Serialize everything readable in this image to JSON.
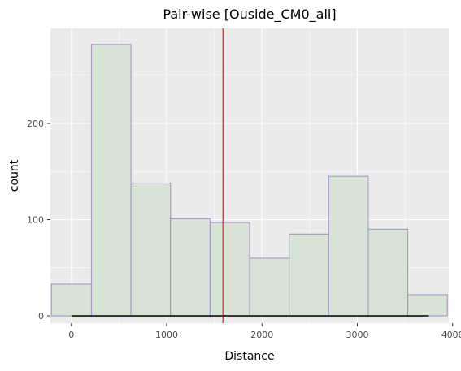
{
  "chart_data": {
    "type": "bar",
    "subtype": "histogram",
    "title": "Pair-wise [Ouside_CM0_all]",
    "xlabel": "Distance",
    "ylabel": "count",
    "xlim": [
      -220,
      3960
    ],
    "ylim": [
      0,
      300
    ],
    "xticks": [
      0,
      1000,
      2000,
      3000,
      4000
    ],
    "xtick_labels": [
      "0",
      "1000",
      "2000",
      "3000",
      "4000"
    ],
    "yticks": [
      0,
      100,
      200
    ],
    "ytick_labels": [
      "0",
      "100",
      "200"
    ],
    "grid": true,
    "bins": [
      {
        "x0": -210,
        "x1": 210,
        "count": 33
      },
      {
        "x0": 210,
        "x1": 625,
        "count": 282
      },
      {
        "x0": 625,
        "x1": 1040,
        "count": 138
      },
      {
        "x0": 1040,
        "x1": 1455,
        "count": 101
      },
      {
        "x0": 1455,
        "x1": 1870,
        "count": 97
      },
      {
        "x0": 1870,
        "x1": 2285,
        "count": 60
      },
      {
        "x0": 2285,
        "x1": 2700,
        "count": 85
      },
      {
        "x0": 2700,
        "x1": 3115,
        "count": 145
      },
      {
        "x0": 3115,
        "x1": 3530,
        "count": 90
      },
      {
        "x0": 3530,
        "x1": 3945,
        "count": 22
      }
    ],
    "vline": {
      "x": 1590
    },
    "range_segment": {
      "x0": 0,
      "x1": 3750,
      "y": 0
    },
    "colors": {
      "panel_background": "#ebebeb",
      "grid_major": "#ffffff",
      "bar_fill": "#d7e3d5",
      "bar_edge": "#a58cc4",
      "vline": "#cc0000",
      "segment": "#000000"
    }
  }
}
